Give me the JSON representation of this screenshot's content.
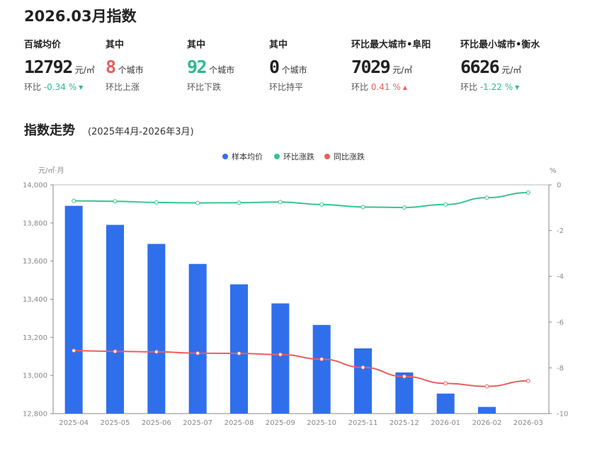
{
  "header": {
    "title": "2026.03月指数"
  },
  "stats": [
    {
      "label": "百城均价",
      "value": "12792",
      "unit": "元/㎡",
      "sub_prefix": "环比",
      "sub_value": "-0.34 %",
      "trend": "down",
      "label_color": "#222222",
      "value_color": "#222222"
    },
    {
      "label": "其中",
      "value": "8",
      "unit": "个城市",
      "sub_prefix": "环比上涨",
      "sub_value": "",
      "trend": "",
      "label_color": "#222222",
      "value_color": "#e8605f"
    },
    {
      "label": "其中",
      "value": "92",
      "unit": "个城市",
      "sub_prefix": "环比下跌",
      "sub_value": "",
      "trend": "",
      "label_color": "#222222",
      "value_color": "#2db893"
    },
    {
      "label": "其中",
      "value": "0",
      "unit": "个城市",
      "sub_prefix": "环比持平",
      "sub_value": "",
      "trend": "",
      "label_color": "#222222",
      "value_color": "#222222"
    },
    {
      "label": "环比最大城市•阜阳",
      "value": "7029",
      "unit": "元/㎡",
      "sub_prefix": "环比",
      "sub_value": "0.41 %",
      "trend": "up",
      "label_color": "#e8605f",
      "value_color": "#222222"
    },
    {
      "label": "环比最小城市•衡水",
      "value": "6626",
      "unit": "元/㎡",
      "sub_prefix": "环比",
      "sub_value": "-1.22 %",
      "trend": "down",
      "label_color": "#2db893",
      "value_color": "#222222"
    }
  ],
  "section": {
    "title": "指数走势",
    "range": "(2025年4月-2026年3月)"
  },
  "chart_data": {
    "type": "bar",
    "left_unit": "元/㎡·月",
    "right_unit": "%",
    "categories": [
      "2025-04",
      "2025-05",
      "2025-06",
      "2025-07",
      "2025-08",
      "2025-09",
      "2025-10",
      "2025-11",
      "2025-12",
      "2026-01",
      "2026-02",
      "2026-03"
    ],
    "ylim_left": [
      12800,
      14000
    ],
    "yticks_left": [
      "12,800",
      "13,000",
      "13,200",
      "13,400",
      "13,600",
      "13,800",
      "14,000"
    ],
    "ylim_right": [
      -10,
      0
    ],
    "yticks_right": [
      "-10",
      "-8",
      "-6",
      "-4",
      "-2",
      "0"
    ],
    "series": [
      {
        "name": "样本均价",
        "kind": "bar",
        "axis": "left",
        "color": "#2f6fec",
        "values": [
          13890,
          13790,
          13690,
          13585,
          13478,
          13378,
          13265,
          13142,
          13016,
          12905,
          12835,
          12792
        ]
      },
      {
        "name": "环比涨跌",
        "kind": "line",
        "axis": "right",
        "color": "#37c48f",
        "values": [
          -0.7,
          -0.72,
          -0.77,
          -0.79,
          -0.78,
          -0.75,
          -0.86,
          -0.97,
          -0.99,
          -0.86,
          -0.56,
          -0.34
        ]
      },
      {
        "name": "同比涨跌",
        "kind": "line",
        "axis": "right",
        "color": "#e8605f",
        "values": [
          -7.25,
          -7.28,
          -7.3,
          -7.36,
          -7.37,
          -7.42,
          -7.62,
          -7.98,
          -8.38,
          -8.68,
          -8.81,
          -8.57
        ]
      }
    ]
  }
}
